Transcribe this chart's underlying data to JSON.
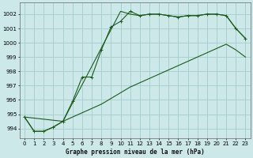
{
  "title": "Graphe pression niveau de la mer (hPa)",
  "background_color": "#cce8e8",
  "grid_color": "#aad0d0",
  "line_color": "#1a5c1a",
  "xlim": [
    -0.5,
    23.5
  ],
  "ylim": [
    993.3,
    1002.8
  ],
  "yticks": [
    994,
    995,
    996,
    997,
    998,
    999,
    1000,
    1001,
    1002
  ],
  "xticks": [
    0,
    1,
    2,
    3,
    4,
    5,
    6,
    7,
    8,
    9,
    10,
    11,
    12,
    13,
    14,
    15,
    16,
    17,
    18,
    19,
    20,
    21,
    22,
    23
  ],
  "series1_x": [
    0,
    1,
    2,
    3,
    4,
    5,
    6,
    7,
    8,
    9,
    10,
    11,
    12,
    13,
    14,
    15,
    16,
    17,
    18,
    19,
    20,
    21,
    22,
    23
  ],
  "series1_y": [
    994.8,
    993.8,
    993.8,
    994.1,
    994.5,
    995.9,
    997.6,
    997.6,
    999.5,
    1001.1,
    1001.5,
    1002.2,
    1001.9,
    1002.0,
    1002.0,
    1001.9,
    1001.8,
    1001.9,
    1001.9,
    1002.0,
    1002.0,
    1001.9,
    1001.0,
    1000.3
  ],
  "series2_x": [
    0,
    4,
    10,
    11,
    12,
    13,
    14,
    15,
    16,
    17,
    18,
    19,
    20,
    21,
    22,
    23
  ],
  "series2_y": [
    994.8,
    994.5,
    1002.2,
    1002.0,
    1001.9,
    1002.0,
    1002.0,
    1001.9,
    1001.8,
    1001.9,
    1001.9,
    1002.0,
    1002.0,
    1001.9,
    1001.0,
    1000.3
  ],
  "series3_x": [
    0,
    1,
    2,
    3,
    4,
    5,
    6,
    7,
    8,
    9,
    10,
    11,
    12,
    13,
    14,
    15,
    16,
    17,
    18,
    19,
    20,
    21,
    22,
    23
  ],
  "series3_y": [
    994.8,
    993.8,
    993.8,
    994.1,
    994.5,
    994.8,
    995.1,
    995.4,
    995.7,
    996.1,
    996.5,
    996.9,
    997.2,
    997.5,
    997.8,
    998.1,
    998.4,
    998.7,
    999.0,
    999.3,
    999.6,
    999.9,
    999.5,
    999.0
  ]
}
